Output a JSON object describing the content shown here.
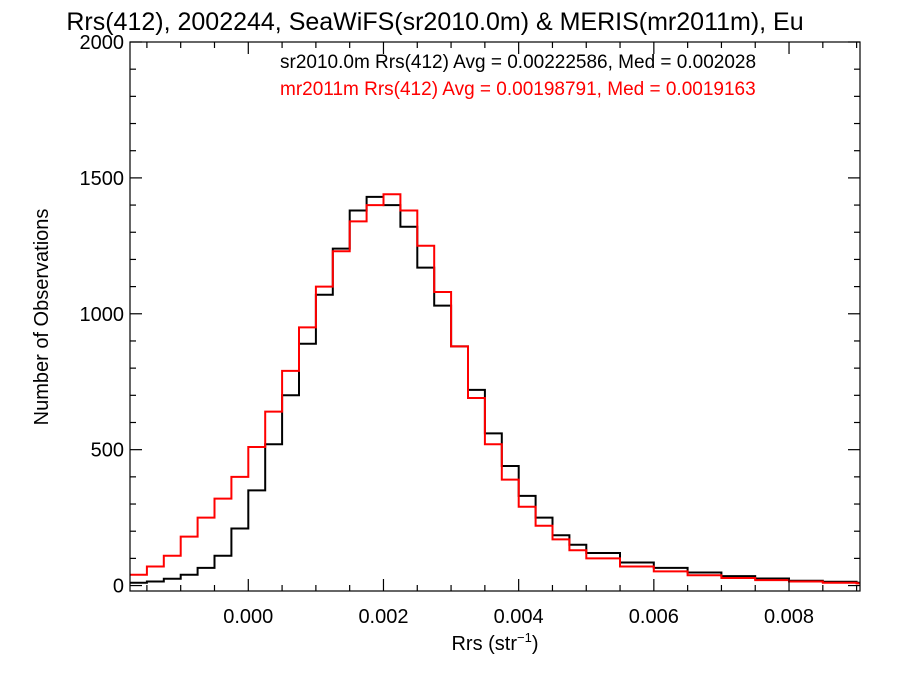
{
  "chart_data": {
    "type": "line",
    "title": "Rrs(412), 2002244, SeaWiFS(sr2010.0m) & MERIS(mr2011m), Eu",
    "xlabel": "Rrs (str",
    "xlabel_sup": "−1",
    "xlabel_end": ")",
    "ylabel": "Number of Observations",
    "xlim": [
      -0.00175,
      0.00905
    ],
    "ylim": [
      -20,
      2000
    ],
    "xticks": [
      0.0,
      0.002,
      0.004,
      0.006,
      0.008
    ],
    "xtick_labels": [
      "0.000",
      "0.002",
      "0.004",
      "0.006",
      "0.008"
    ],
    "yticks": [
      0,
      500,
      1000,
      1500,
      2000
    ],
    "ytick_labels": [
      "0",
      "500",
      "1000",
      "1500",
      "2000"
    ],
    "grid": false,
    "legend_position": "top-right",
    "series": [
      {
        "name": "sr2010.0m",
        "color": "#000000",
        "annotation": "sr2010.0m Rrs(412) Avg = 0.00222586, Med = 0.002028",
        "x": [
          -0.00175,
          -0.0015,
          -0.00125,
          -0.001,
          -0.00075,
          -0.0005,
          -0.00025,
          0.0,
          0.00025,
          0.0005,
          0.00075,
          0.001,
          0.00125,
          0.0015,
          0.00175,
          0.002,
          0.00225,
          0.0025,
          0.00275,
          0.003,
          0.00325,
          0.0035,
          0.00375,
          0.004,
          0.00425,
          0.0045,
          0.00475,
          0.005,
          0.0055,
          0.006,
          0.0065,
          0.007,
          0.0075,
          0.008,
          0.0085,
          0.009
        ],
        "y": [
          10,
          15,
          25,
          40,
          65,
          110,
          210,
          350,
          520,
          700,
          890,
          1070,
          1240,
          1380,
          1430,
          1400,
          1320,
          1170,
          1030,
          880,
          720,
          560,
          440,
          330,
          250,
          185,
          150,
          120,
          85,
          65,
          48,
          35,
          26,
          18,
          14,
          10
        ]
      },
      {
        "name": "mr2011m",
        "color": "#ff0000",
        "annotation": "mr2011m Rrs(412) Avg = 0.00198791, Med = 0.0019163",
        "x": [
          -0.00175,
          -0.0015,
          -0.00125,
          -0.001,
          -0.00075,
          -0.0005,
          -0.00025,
          0.0,
          0.00025,
          0.0005,
          0.00075,
          0.001,
          0.00125,
          0.0015,
          0.00175,
          0.002,
          0.00225,
          0.0025,
          0.00275,
          0.003,
          0.00325,
          0.0035,
          0.00375,
          0.004,
          0.00425,
          0.0045,
          0.00475,
          0.005,
          0.0055,
          0.006,
          0.0065,
          0.007,
          0.0075,
          0.008,
          0.0085,
          0.009
        ],
        "y": [
          40,
          70,
          110,
          180,
          250,
          320,
          400,
          510,
          640,
          790,
          950,
          1100,
          1230,
          1340,
          1400,
          1440,
          1380,
          1250,
          1080,
          880,
          690,
          520,
          390,
          290,
          220,
          170,
          130,
          100,
          70,
          52,
          38,
          28,
          20,
          15,
          10,
          8
        ]
      }
    ]
  }
}
